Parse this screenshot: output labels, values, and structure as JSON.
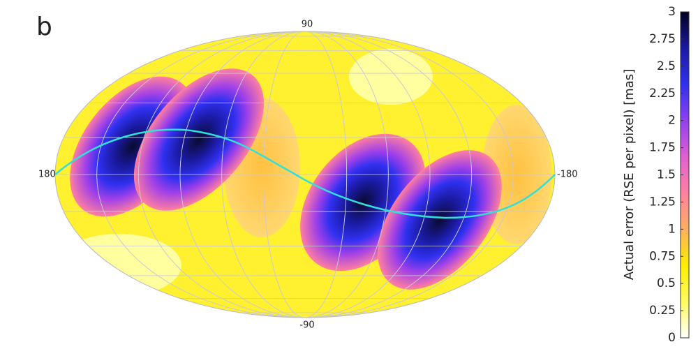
{
  "chart_data": {
    "type": "skymap",
    "panel_label": "b",
    "projection_labels": {
      "top": "90",
      "bottom": "-90",
      "left": "180",
      "right": "-180"
    },
    "colorbar": {
      "label": "Actual error (RSE per pixel) [mas]",
      "lim": [
        0,
        3
      ],
      "ticks": [
        0,
        0.25,
        0.5,
        0.75,
        1,
        1.25,
        1.5,
        1.75,
        2,
        2.25,
        2.5,
        2.75,
        3
      ],
      "colors": [
        "#ffffff",
        "#fffb60",
        "#ffee00",
        "#ffb060",
        "#ff80a0",
        "#e060d0",
        "#9040f0",
        "#3030f0",
        "#1a1aa0",
        "#000020"
      ]
    }
  }
}
